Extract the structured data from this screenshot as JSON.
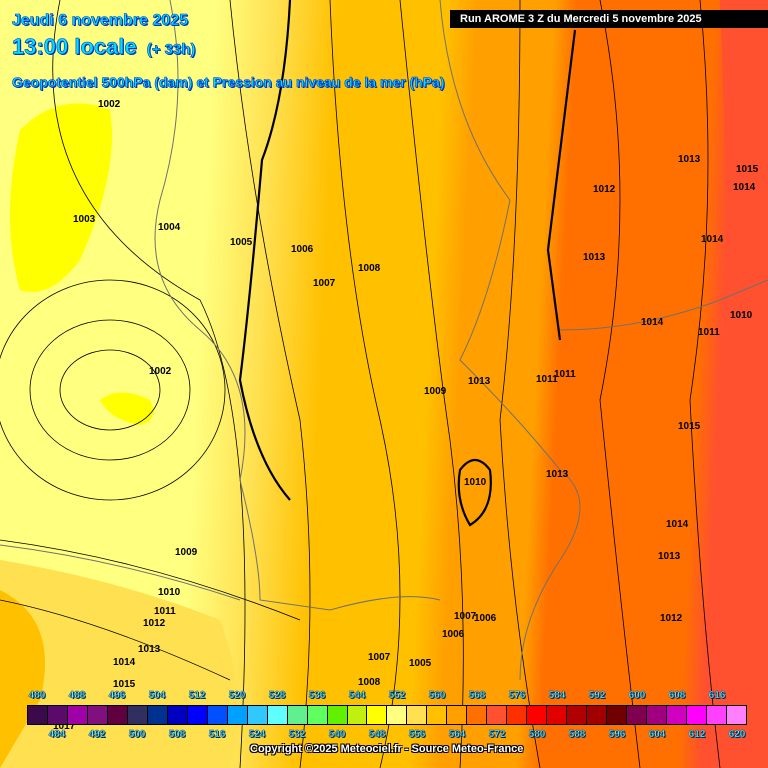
{
  "header": {
    "date": "Jeudi 6 novembre 2025",
    "time": "13:00 locale",
    "lead": "(+ 33h)",
    "parameter": "Geopotentiel 500hPa (dam) et Pression au niveau de la mer (hPa)",
    "run": "Run AROME 3 Z du Mercredi 5 novembre 2025"
  },
  "isobar_labels": [
    "1002",
    "1003",
    "1004",
    "1005",
    "1006",
    "1007",
    "1008",
    "1002",
    "1009",
    "1013",
    "1011",
    "1011",
    "1010",
    "1013",
    "1009",
    "1010",
    "1011",
    "1012",
    "1013",
    "1014",
    "1015",
    "1007",
    "1006",
    "1006",
    "1007",
    "1005",
    "1008",
    "1013",
    "1012",
    "1015",
    "1014",
    "1014",
    "1013",
    "1014",
    "1011",
    "1010",
    "1015",
    "1014",
    "1013",
    "1012",
    "1017"
  ],
  "legend": {
    "unit_values": [
      "480",
      "484",
      "488",
      "492",
      "496",
      "500",
      "504",
      "508",
      "512",
      "516",
      "520",
      "524",
      "528",
      "532",
      "536",
      "540",
      "544",
      "548",
      "552",
      "556",
      "560",
      "564",
      "568",
      "572",
      "576",
      "580",
      "584",
      "588",
      "592",
      "596",
      "600",
      "604",
      "608",
      "612",
      "616",
      "620"
    ],
    "colors": [
      "#3a0a4a",
      "#5a0a6a",
      "#a000a8",
      "#801080",
      "#600040",
      "#303060",
      "#003090",
      "#0000c0",
      "#0000ff",
      "#0050ff",
      "#00a0ff",
      "#30c8ff",
      "#60ffff",
      "#60f090",
      "#60ff60",
      "#60f000",
      "#c0f010",
      "#ffff00",
      "#ffff80",
      "#ffe050",
      "#ffc000",
      "#ffa000",
      "#ff7000",
      "#ff5030",
      "#ff3000",
      "#ff0000",
      "#e00000",
      "#b00000",
      "#a00000",
      "#700000",
      "#800050",
      "#a00080",
      "#d000c0",
      "#ff00ff",
      "#ff40ff",
      "#ff80ff"
    ]
  },
  "copyright": "Copyright ©2025 Meteociel.fr - Source Meteo-France"
}
